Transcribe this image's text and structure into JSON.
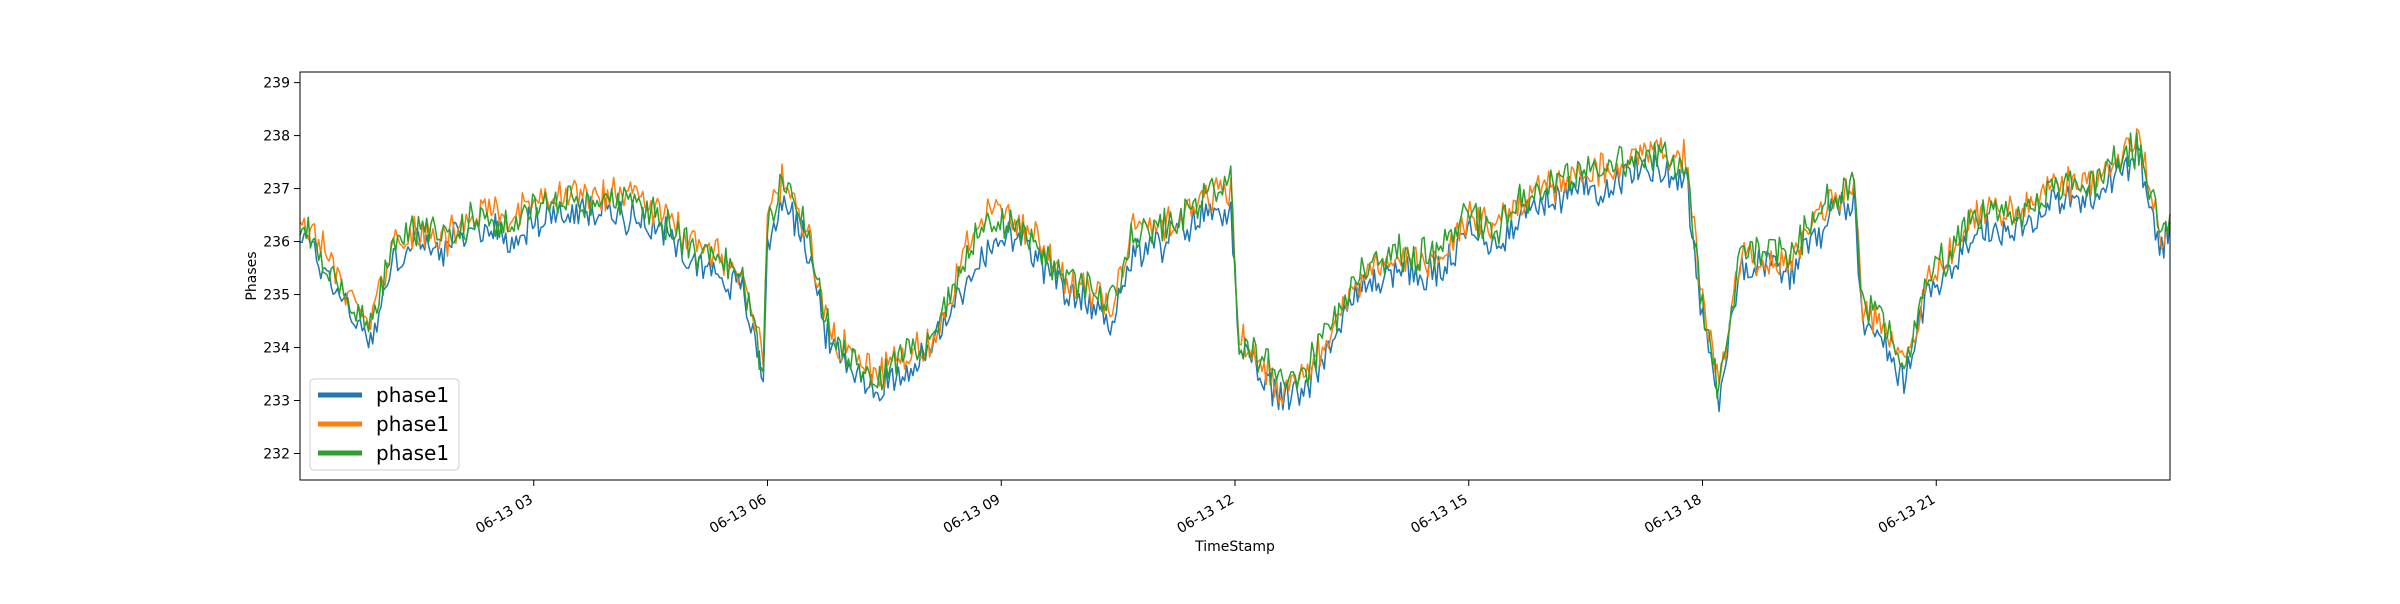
{
  "chart_data": {
    "type": "line",
    "title": "",
    "xlabel": "TimeStamp",
    "ylabel": "Phases",
    "x_range": [
      "06-13 00:00",
      "06-13 24:00"
    ],
    "ylim": [
      231.5,
      239.2
    ],
    "grid": false,
    "legend_position": "lower-left",
    "x_ticks": [
      "06-13 03",
      "06-13 06",
      "06-13 09",
      "06-13 12",
      "06-13 15",
      "06-13 18",
      "06-13 21"
    ],
    "y_ticks": [
      "232",
      "233",
      "234",
      "235",
      "236",
      "237",
      "238",
      "239"
    ],
    "x_tick_values": [
      3,
      6,
      9,
      12,
      15,
      18,
      21
    ],
    "y_tick_values": [
      232,
      233,
      234,
      235,
      236,
      237,
      238,
      239
    ],
    "x_hours": [
      0,
      0.3,
      0.6,
      0.9,
      1.2,
      1.5,
      1.8,
      2.1,
      2.4,
      2.7,
      3.0,
      3.3,
      3.6,
      3.9,
      4.2,
      4.5,
      4.8,
      5.1,
      5.4,
      5.7,
      5.95,
      6.0,
      6.2,
      6.5,
      6.8,
      7.1,
      7.4,
      7.7,
      8.0,
      8.3,
      8.6,
      8.9,
      9.2,
      9.5,
      9.8,
      10.1,
      10.4,
      10.7,
      11.0,
      11.3,
      11.6,
      11.95,
      12.05,
      12.3,
      12.6,
      12.9,
      13.2,
      13.5,
      13.8,
      14.1,
      14.4,
      14.7,
      15.0,
      15.3,
      15.6,
      15.9,
      16.2,
      16.5,
      16.8,
      17.1,
      17.4,
      17.8,
      17.95,
      18.2,
      18.5,
      18.8,
      19.1,
      19.4,
      19.7,
      19.95,
      20.05,
      20.3,
      20.6,
      20.9,
      21.2,
      21.5,
      21.8,
      22.1,
      22.4,
      22.7,
      23.0,
      23.3,
      23.6,
      23.9,
      24.0
    ],
    "series": [
      {
        "name": "phase1",
        "color": "#1f77b4",
        "values": [
          236.2,
          235.5,
          234.8,
          234.1,
          235.6,
          236.0,
          235.8,
          236.1,
          236.3,
          236.0,
          236.4,
          236.5,
          236.5,
          236.6,
          236.5,
          236.4,
          236.0,
          235.6,
          235.4,
          235.0,
          233.4,
          236.0,
          236.8,
          236.0,
          234.0,
          233.6,
          233.2,
          233.5,
          233.8,
          234.5,
          235.4,
          235.9,
          236.1,
          235.6,
          235.0,
          234.9,
          234.5,
          235.8,
          235.9,
          236.2,
          236.5,
          236.7,
          233.9,
          233.5,
          233.0,
          233.3,
          234.0,
          234.9,
          235.3,
          235.5,
          235.3,
          235.5,
          236.2,
          235.9,
          236.4,
          236.7,
          236.9,
          237.0,
          237.1,
          237.3,
          237.4,
          237.2,
          235.0,
          233.0,
          235.6,
          235.6,
          235.4,
          236.0,
          236.6,
          236.8,
          234.4,
          234.3,
          233.3,
          235.2,
          235.5,
          236.2,
          236.2,
          236.3,
          236.6,
          236.8,
          236.7,
          237.3,
          237.6,
          235.8,
          236.3
        ]
      },
      {
        "name": "phase1",
        "color": "#ff7f0e",
        "values": [
          236.5,
          235.8,
          235.1,
          234.4,
          235.9,
          236.2,
          236.0,
          236.3,
          236.6,
          236.4,
          236.7,
          236.8,
          236.9,
          236.9,
          236.8,
          236.7,
          236.3,
          235.9,
          235.8,
          235.3,
          233.7,
          236.4,
          237.2,
          236.2,
          234.3,
          233.8,
          233.5,
          233.8,
          234.0,
          234.7,
          236.1,
          236.7,
          236.3,
          236.0,
          235.3,
          235.2,
          234.7,
          236.2,
          236.3,
          236.5,
          236.8,
          237.0,
          234.2,
          233.8,
          233.2,
          233.5,
          234.2,
          235.2,
          235.5,
          235.8,
          235.6,
          235.8,
          236.5,
          236.2,
          236.7,
          236.9,
          237.1,
          237.3,
          237.4,
          237.6,
          237.8,
          237.5,
          235.4,
          233.2,
          235.9,
          235.5,
          235.6,
          236.3,
          236.9,
          237.0,
          234.7,
          234.5,
          233.5,
          235.4,
          235.8,
          236.6,
          236.5,
          236.6,
          236.9,
          237.1,
          237.0,
          237.6,
          237.9,
          236.0,
          236.5
        ]
      },
      {
        "name": "phase1",
        "color": "#2ca02c",
        "values": [
          236.4,
          235.7,
          235.0,
          234.3,
          235.9,
          236.3,
          236.1,
          236.3,
          236.5,
          236.3,
          236.7,
          236.8,
          236.8,
          236.8,
          236.8,
          236.6,
          236.2,
          235.8,
          235.7,
          235.2,
          233.6,
          236.3,
          237.1,
          236.2,
          234.2,
          233.8,
          233.4,
          233.8,
          234.0,
          234.8,
          235.9,
          236.4,
          236.3,
          236.0,
          235.3,
          235.2,
          234.8,
          236.2,
          236.3,
          236.5,
          236.9,
          237.1,
          234.1,
          233.8,
          233.3,
          233.6,
          234.3,
          235.2,
          235.6,
          235.8,
          235.7,
          235.9,
          236.6,
          236.2,
          236.7,
          237.0,
          237.2,
          237.3,
          237.4,
          237.5,
          237.6,
          237.4,
          235.3,
          233.2,
          235.9,
          235.8,
          235.7,
          236.3,
          236.9,
          237.0,
          234.8,
          234.6,
          233.6,
          235.5,
          235.8,
          236.6,
          236.6,
          236.6,
          236.9,
          237.1,
          237.0,
          237.5,
          237.8,
          236.1,
          236.6
        ]
      }
    ]
  },
  "legend": {
    "entries": [
      "phase1",
      "phase1",
      "phase1"
    ]
  }
}
